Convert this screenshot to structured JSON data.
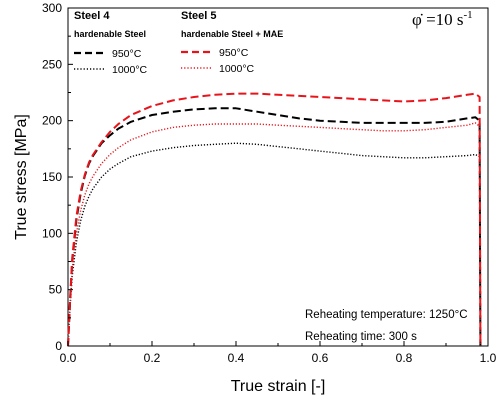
{
  "chart_data": {
    "type": "line",
    "xlabel": "True strain [-]",
    "ylabel": "True stress [MPa]",
    "xlim": [
      0.0,
      1.0
    ],
    "ylim": [
      0,
      300
    ],
    "xticks": [
      "0.0",
      "0.2",
      "0.4",
      "0.6",
      "0.8",
      "1.0"
    ],
    "yticks": [
      "0",
      "50",
      "100",
      "150",
      "200",
      "250",
      "300"
    ],
    "grid": false,
    "legend": {
      "placement": "top-left",
      "groups": [
        {
          "title": "Steel 4",
          "subtitle": "hardenable Steel",
          "entries": [
            "950°C",
            "1000°C"
          ]
        },
        {
          "title": "Steel 5",
          "subtitle": "hardenable Steel + MAE",
          "entries": [
            "950°C",
            "1000°C"
          ]
        }
      ]
    },
    "strain_rate_label": {
      "symbol": "φ̇",
      "text": " =10 s",
      "exponent": "-1"
    },
    "annotations": [
      "Reheating temperature: 1250°C",
      "Reheating time: 300 s"
    ],
    "series": [
      {
        "name": "950°C",
        "group": "Steel 4",
        "color": "#000000",
        "style": "dashed",
        "x": [
          0.0,
          0.005,
          0.01,
          0.02,
          0.03,
          0.04,
          0.05,
          0.06,
          0.08,
          0.1,
          0.12,
          0.15,
          0.2,
          0.25,
          0.3,
          0.35,
          0.4,
          0.45,
          0.5,
          0.55,
          0.6,
          0.65,
          0.7,
          0.75,
          0.8,
          0.85,
          0.9,
          0.95,
          0.97,
          0.98,
          0.982
        ],
        "y": [
          0,
          40,
          75,
          112,
          135,
          151,
          162,
          169,
          180,
          187,
          193,
          199,
          205,
          208,
          210,
          211,
          211,
          208,
          205,
          202,
          200,
          199,
          198,
          198,
          198,
          198,
          199,
          202,
          203,
          200,
          0
        ]
      },
      {
        "name": "1000°C",
        "group": "Steel 4",
        "color": "#000000",
        "style": "dotted",
        "x": [
          0.0,
          0.005,
          0.01,
          0.02,
          0.03,
          0.04,
          0.05,
          0.06,
          0.08,
          0.1,
          0.12,
          0.15,
          0.2,
          0.25,
          0.3,
          0.35,
          0.4,
          0.45,
          0.5,
          0.55,
          0.6,
          0.65,
          0.7,
          0.75,
          0.8,
          0.85,
          0.9,
          0.95,
          0.97,
          0.98,
          0.982
        ],
        "y": [
          0,
          35,
          62,
          92,
          111,
          124,
          133,
          140,
          150,
          157,
          162,
          168,
          173,
          176,
          178,
          179,
          180,
          179,
          177,
          175,
          173,
          171,
          169,
          168,
          167,
          167,
          168,
          169,
          170,
          168,
          0
        ]
      },
      {
        "name": "950°C",
        "group": "Steel 5",
        "color": "#e8141b",
        "style": "dashed",
        "x": [
          0.0,
          0.005,
          0.01,
          0.02,
          0.03,
          0.04,
          0.05,
          0.06,
          0.08,
          0.1,
          0.12,
          0.15,
          0.2,
          0.25,
          0.3,
          0.35,
          0.4,
          0.45,
          0.5,
          0.55,
          0.6,
          0.65,
          0.7,
          0.75,
          0.8,
          0.85,
          0.9,
          0.95,
          0.97,
          0.98,
          0.982
        ],
        "y": [
          0,
          42,
          78,
          115,
          137,
          152,
          163,
          170,
          181,
          190,
          197,
          205,
          213,
          218,
          221,
          223,
          224,
          224,
          223,
          222,
          221,
          220,
          219,
          218,
          217,
          218,
          220,
          223,
          224,
          221,
          0
        ]
      },
      {
        "name": "1000°C",
        "group": "Steel 5",
        "color": "#e8141b",
        "style": "dotted",
        "x": [
          0.0,
          0.005,
          0.01,
          0.02,
          0.03,
          0.04,
          0.05,
          0.06,
          0.08,
          0.1,
          0.12,
          0.15,
          0.2,
          0.25,
          0.3,
          0.35,
          0.4,
          0.45,
          0.5,
          0.55,
          0.6,
          0.65,
          0.7,
          0.75,
          0.8,
          0.85,
          0.9,
          0.95,
          0.97,
          0.98,
          0.982
        ],
        "y": [
          0,
          38,
          68,
          100,
          120,
          134,
          144,
          151,
          162,
          170,
          176,
          183,
          190,
          194,
          196,
          197,
          197,
          197,
          196,
          195,
          194,
          193,
          192,
          191,
          191,
          192,
          194,
          196,
          198,
          195,
          0
        ]
      }
    ]
  }
}
